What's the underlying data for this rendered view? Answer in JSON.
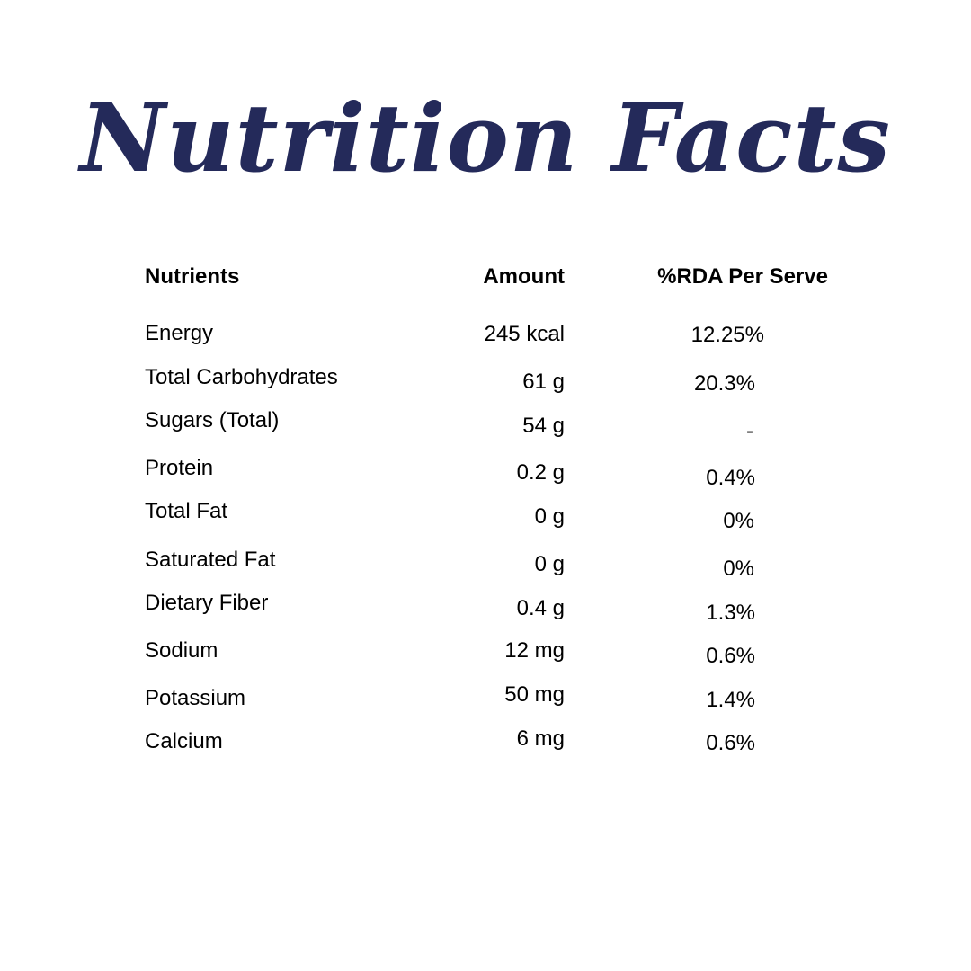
{
  "title": "Nutrition Facts",
  "accent_color": "#242a5a",
  "table": {
    "headers": [
      "Nutrients",
      "Amount",
      "%RDA Per Serve"
    ],
    "rows": [
      {
        "nutrient": "Energy",
        "amount": "245 kcal",
        "rda": "12.25%"
      },
      {
        "nutrient": "Total Carbohydrates",
        "amount": "61 g",
        "rda": "20.3%"
      },
      {
        "nutrient": "Sugars (Total)",
        "amount": "54 g",
        "rda": "-"
      },
      {
        "nutrient": "Protein",
        "amount": "0.2 g",
        "rda": "0.4%"
      },
      {
        "nutrient": "Total Fat",
        "amount": "0 g",
        "rda": "0%"
      },
      {
        "nutrient": "Saturated Fat",
        "amount": "0 g",
        "rda": "0%"
      },
      {
        "nutrient": "Dietary Fiber",
        "amount": "0.4 g",
        "rda": "1.3%"
      },
      {
        "nutrient": "Sodium",
        "amount": "12 mg",
        "rda": "0.6%"
      },
      {
        "nutrient": "Potassium",
        "amount": "50 mg",
        "rda": "1.4%"
      },
      {
        "nutrient": "Calcium",
        "amount": "6 mg",
        "rda": "0.6%"
      }
    ]
  }
}
